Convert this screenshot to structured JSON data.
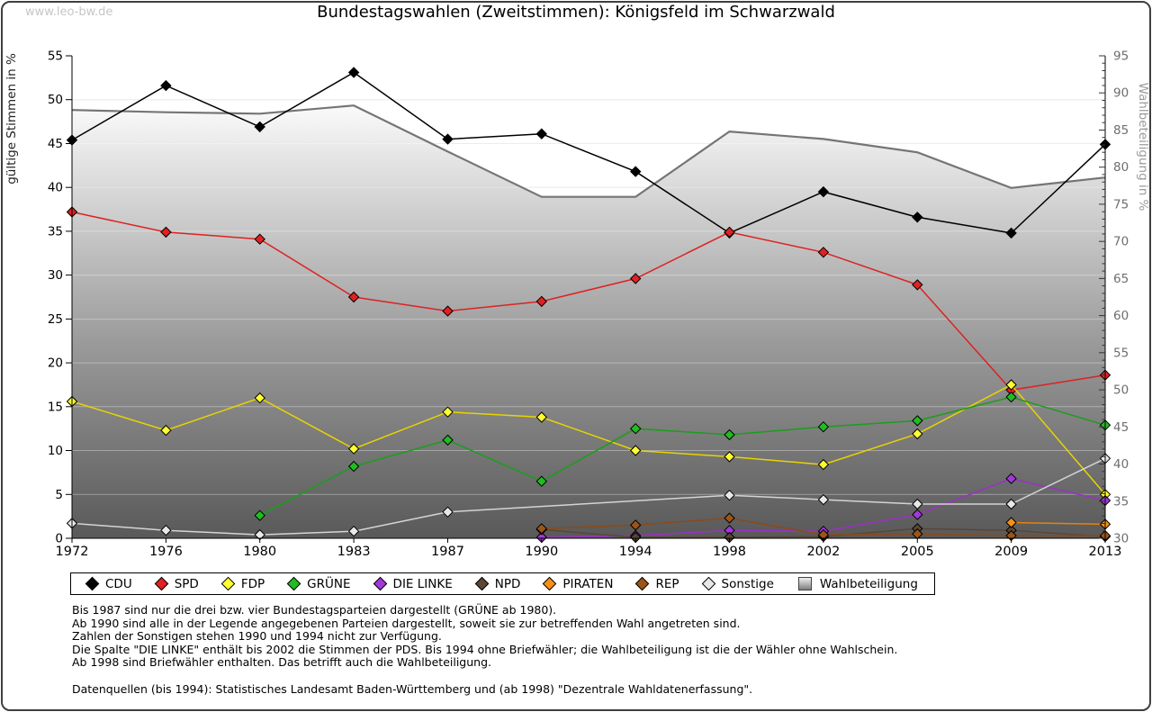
{
  "page": {
    "watermark": "www.leo-bw.de",
    "title": "Bundestagswahlen (Zweitstimmen): Königsfeld im Schwarzwald"
  },
  "chart_data": {
    "type": "line",
    "title": "Bundestagswahlen (Zweitstimmen): Königsfeld im Schwarzwald",
    "x_categories": [
      "1972",
      "1976",
      "1980",
      "1983",
      "1987",
      "1990",
      "1994",
      "1998",
      "2002",
      "2005",
      "2009",
      "2013"
    ],
    "left_axis": {
      "label": "gültige Stimmen in %",
      "min": 0,
      "max": 55,
      "tick_step": 5
    },
    "right_axis": {
      "label": "Wahlbeteiligung in %",
      "min": 30,
      "max": 95,
      "tick_step": 5,
      "minor_step": 1
    },
    "grid": true,
    "legend_position": "bottom",
    "series": [
      {
        "name": "CDU",
        "type": "line",
        "axis": "left",
        "line": "#000000",
        "fill": "#000000",
        "values": [
          45.4,
          51.6,
          46.9,
          53.1,
          45.5,
          46.1,
          41.8,
          34.8,
          39.5,
          36.6,
          34.8,
          44.9
        ]
      },
      {
        "name": "SPD",
        "type": "line",
        "axis": "left",
        "line": "#dd2222",
        "fill": "#e02222",
        "values": [
          37.2,
          34.9,
          34.1,
          27.5,
          25.9,
          27.0,
          29.6,
          34.9,
          32.6,
          28.9,
          16.9,
          18.6
        ]
      },
      {
        "name": "FDP",
        "type": "line",
        "axis": "left",
        "line": "#e8d400",
        "fill": "#ffff33",
        "values": [
          15.6,
          12.3,
          16.0,
          10.2,
          14.4,
          13.8,
          10.0,
          9.3,
          8.4,
          11.9,
          17.5,
          5.0
        ]
      },
      {
        "name": "GRÜNE",
        "type": "line",
        "axis": "left",
        "line": "#1a9e1a",
        "fill": "#22bb22",
        "values": [
          null,
          null,
          2.6,
          8.2,
          11.2,
          6.5,
          12.5,
          11.8,
          12.7,
          13.4,
          16.1,
          12.9
        ]
      },
      {
        "name": "DIE LINKE",
        "type": "line",
        "axis": "left",
        "line": "#9b30c8",
        "fill": "#a238d8",
        "values": [
          null,
          null,
          null,
          null,
          null,
          0.1,
          0.3,
          0.9,
          0.8,
          2.7,
          6.8,
          4.3
        ]
      },
      {
        "name": "NPD",
        "type": "line",
        "axis": "left",
        "line": "#5a4736",
        "fill": "#5a4736",
        "values": [
          null,
          null,
          null,
          null,
          null,
          1.0,
          0.1,
          0.1,
          0.2,
          1.1,
          0.9,
          0.2
        ]
      },
      {
        "name": "PIRATEN",
        "type": "line",
        "axis": "left",
        "line": "#e8820a",
        "fill": "#f59016",
        "values": [
          null,
          null,
          null,
          null,
          null,
          null,
          null,
          null,
          null,
          null,
          1.8,
          1.6
        ]
      },
      {
        "name": "REP",
        "type": "line",
        "axis": "left",
        "line": "#8b4a1a",
        "fill": "#9c5518",
        "values": [
          null,
          null,
          null,
          null,
          null,
          1.1,
          1.5,
          2.3,
          0.4,
          0.5,
          0.3,
          0.3
        ]
      },
      {
        "name": "Sonstige",
        "type": "line",
        "axis": "left",
        "line": "#d4d4d4",
        "fill": "#e8e8e8",
        "values": [
          1.7,
          0.9,
          0.4,
          0.8,
          3.0,
          null,
          null,
          4.9,
          4.4,
          3.9,
          3.9,
          9.1
        ]
      },
      {
        "name": "Wahlbeteiligung",
        "type": "area",
        "axis": "right",
        "line": "#757575",
        "fill": "gradient-gray",
        "values": [
          87.7,
          87.4,
          87.2,
          88.3,
          82.1,
          76.0,
          76.0,
          84.8,
          83.8,
          82.0,
          77.2,
          78.6
        ]
      }
    ]
  },
  "footnotes": {
    "lines": [
      "Bis 1987 sind nur die drei bzw. vier Bundestagsparteien dargestellt (GRÜNE ab 1980).",
      "Ab 1990 sind alle in der Legende angegebenen Parteien dargestellt, soweit sie zur betreffenden Wahl angetreten sind.",
      "Zahlen der Sonstigen stehen 1990 und 1994 nicht zur Verfügung.",
      "Die Spalte \"DIE LINKE\" enthält bis 2002 die Stimmen der PDS. Bis 1994 ohne Briefwähler; die Wahlbeteiligung ist die der Wähler ohne Wahlschein.",
      "Ab 1998 sind Briefwähler enthalten. Das betrifft auch die Wahlbeteiligung.",
      "",
      "Datenquellen (bis 1994): Statistisches Landesamt Baden-Württemberg und (ab 1998) \"Dezentrale Wahldatenerfassung\"."
    ]
  }
}
